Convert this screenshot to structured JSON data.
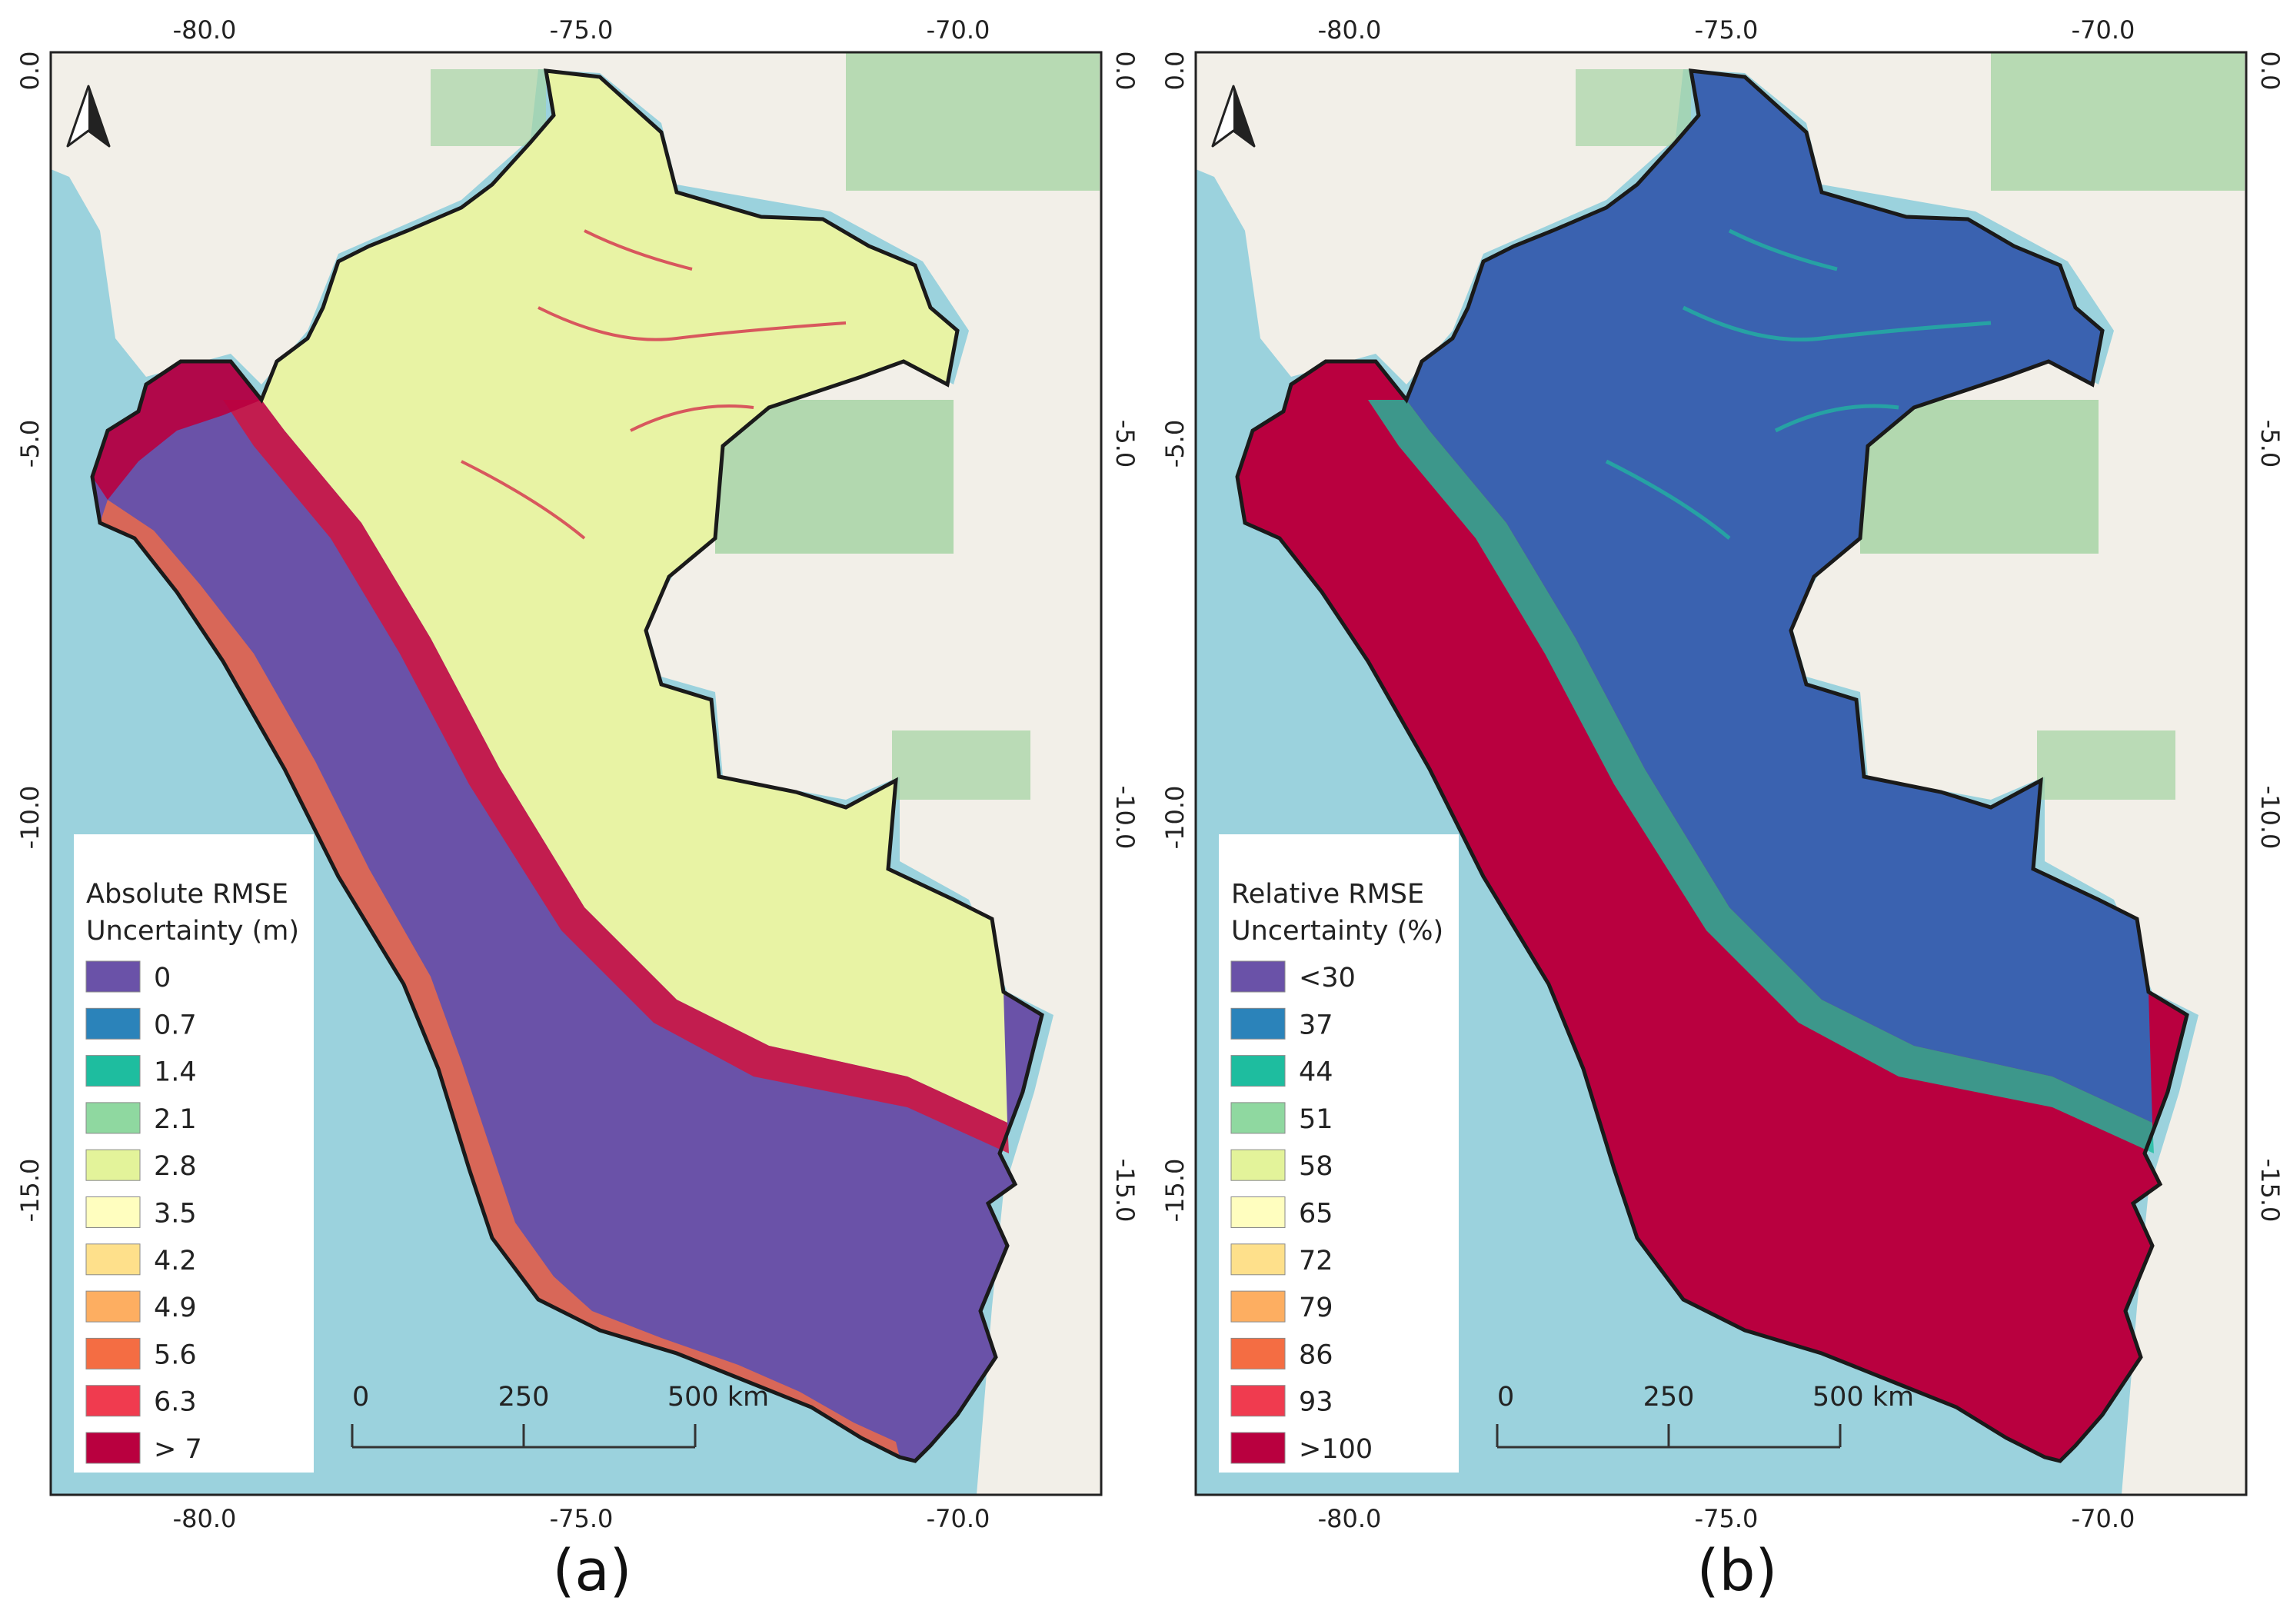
{
  "colors": {
    "sea": "#9bd2dd",
    "land": "#f2efe8",
    "park": "#a7d4a5",
    "border": "#1a1a1a",
    "frame": "#222222"
  },
  "panels": [
    {
      "label": "(a)",
      "legend_title_1": "Absolute RMSE",
      "legend_title_2": "Uncertainty (m)",
      "x_ticks_top": [
        "-80.0",
        "-75.0",
        "-70.0"
      ],
      "x_ticks_bottom": [
        "-80.0",
        "-75.0",
        "-70.0"
      ],
      "y_ticks": [
        "0.0",
        "-5.0",
        "-10.0",
        "-15.0"
      ],
      "legend": [
        {
          "label": "0",
          "color": "#6a52a8"
        },
        {
          "label": "0.7",
          "color": "#2b83ba"
        },
        {
          "label": "1.4",
          "color": "#1ebd9f"
        },
        {
          "label": "2.1",
          "color": "#8fd8a0"
        },
        {
          "label": "2.8",
          "color": "#e3f39a"
        },
        {
          "label": "3.5",
          "color": "#fffebf"
        },
        {
          "label": "4.2",
          "color": "#fee08b"
        },
        {
          "label": "4.9",
          "color": "#fdae61"
        },
        {
          "label": "5.6",
          "color": "#f46d43"
        },
        {
          "label": "6.3",
          "color": "#f03b4f"
        },
        {
          "label": "> 7",
          "color": "#b9003f"
        }
      ],
      "scale": {
        "labels": [
          "0",
          "250",
          "500 km"
        ]
      }
    },
    {
      "label": "(b)",
      "legend_title_1": "Relative RMSE",
      "legend_title_2": "Uncertainty (%)",
      "x_ticks_top": [
        "-80.0",
        "-75.0",
        "-70.0"
      ],
      "x_ticks_bottom": [
        "-80.0",
        "-75.0",
        "-70.0"
      ],
      "y_ticks": [
        "0.0",
        "-5.0",
        "-10.0",
        "-15.0"
      ],
      "legend": [
        {
          "label": "<30",
          "color": "#6a52a8"
        },
        {
          "label": "37",
          "color": "#2b83ba"
        },
        {
          "label": "44",
          "color": "#1ebd9f"
        },
        {
          "label": "51",
          "color": "#8fd8a0"
        },
        {
          "label": "58",
          "color": "#e3f39a"
        },
        {
          "label": "65",
          "color": "#fffebf"
        },
        {
          "label": "72",
          "color": "#fee08b"
        },
        {
          "label": "79",
          "color": "#fdae61"
        },
        {
          "label": "86",
          "color": "#f46d43"
        },
        {
          "label": "93",
          "color": "#f03b4f"
        },
        {
          "label": ">100",
          "color": "#b9003f"
        }
      ],
      "scale": {
        "labels": [
          "0",
          "250",
          "500 km"
        ]
      }
    }
  ]
}
